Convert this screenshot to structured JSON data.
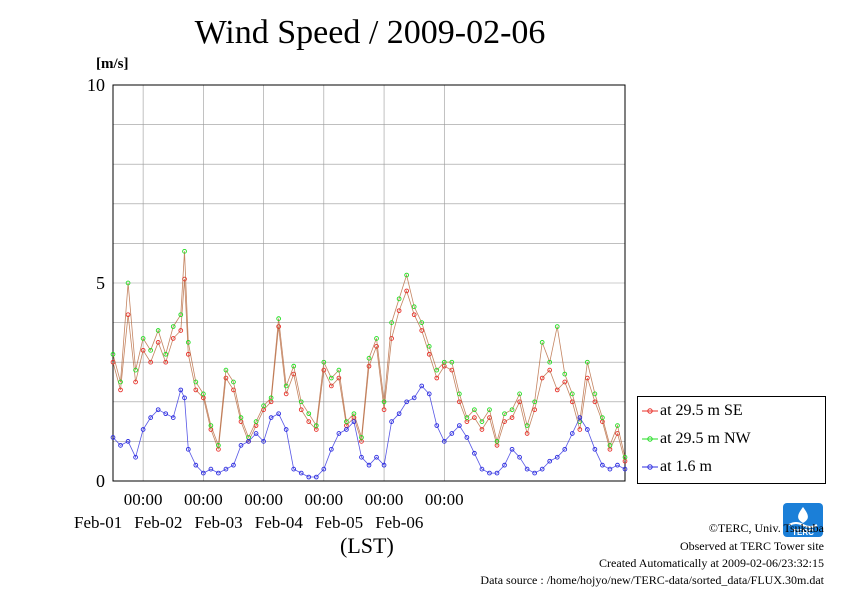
{
  "title": "Wind Speed / 2009-02-06",
  "unit": "[m/s]",
  "x_axis_label": "(LST)",
  "credits": {
    "copyright": "©TERC, Univ. Tsukuba",
    "observed": "Observed at TERC Tower site",
    "created": "Created Automatically at 2009-02-06/23:32:15",
    "source": "Data source : /home/hojyo/new/TERC-data/sorted_data/FLUX.30m.dat"
  },
  "logo_text": "TERC",
  "colors": {
    "se": "#e8302a",
    "nw": "#22dd22",
    "low": "#2d2de0",
    "line": "#b5653a",
    "grid": "#999999"
  },
  "chart_data": {
    "type": "line",
    "title": "Wind Speed / 2009-02-06",
    "ylabel": "[m/s]",
    "xlabel": "(LST)",
    "ylim": [
      0,
      10
    ],
    "yticks": [
      0,
      5,
      10
    ],
    "xlim": [
      "2009-01-31 12:00",
      "2009-02-06 24:00"
    ],
    "xticks": [
      {
        "time": "00:00",
        "date": "Feb-01"
      },
      {
        "time": "00:00",
        "date": "Feb-02"
      },
      {
        "time": "00:00",
        "date": "Feb-03"
      },
      {
        "time": "00:00",
        "date": "Feb-04"
      },
      {
        "time": "00:00",
        "date": "Feb-05"
      },
      {
        "time": "00:00",
        "date": "Feb-06"
      }
    ],
    "grid": true,
    "legend_position": "right",
    "x_hours_from": "2009-01-31 12:00",
    "series": [
      {
        "name": "at 29.5 m SE",
        "color": "#e8302a",
        "points": [
          [
            0,
            3.0
          ],
          [
            3,
            2.3
          ],
          [
            6,
            4.2
          ],
          [
            9,
            2.5
          ],
          [
            12,
            3.3
          ],
          [
            15,
            3.0
          ],
          [
            18,
            3.5
          ],
          [
            21,
            3.0
          ],
          [
            24,
            3.6
          ],
          [
            27,
            3.8
          ],
          [
            28.5,
            5.1
          ],
          [
            30,
            3.2
          ],
          [
            33,
            2.3
          ],
          [
            36,
            2.1
          ],
          [
            39,
            1.3
          ],
          [
            42,
            0.8
          ],
          [
            45,
            2.6
          ],
          [
            48,
            2.3
          ],
          [
            51,
            1.5
          ],
          [
            54,
            1.0
          ],
          [
            57,
            1.4
          ],
          [
            60,
            1.8
          ],
          [
            63,
            2.0
          ],
          [
            66,
            3.9
          ],
          [
            69,
            2.2
          ],
          [
            72,
            2.7
          ],
          [
            75,
            1.8
          ],
          [
            78,
            1.5
          ],
          [
            81,
            1.3
          ],
          [
            84,
            2.8
          ],
          [
            87,
            2.4
          ],
          [
            90,
            2.6
          ],
          [
            93,
            1.4
          ],
          [
            96,
            1.6
          ],
          [
            99,
            1.0
          ],
          [
            102,
            2.9
          ],
          [
            105,
            3.4
          ],
          [
            108,
            1.8
          ],
          [
            111,
            3.6
          ],
          [
            114,
            4.3
          ],
          [
            117,
            4.8
          ],
          [
            120,
            4.2
          ],
          [
            123,
            3.8
          ],
          [
            126,
            3.2
          ],
          [
            129,
            2.6
          ],
          [
            132,
            2.9
          ],
          [
            135,
            2.8
          ],
          [
            138,
            2.0
          ],
          [
            141,
            1.5
          ],
          [
            144,
            1.6
          ],
          [
            147,
            1.3
          ],
          [
            150,
            1.6
          ],
          [
            153,
            0.9
          ],
          [
            156,
            1.5
          ],
          [
            159,
            1.6
          ],
          [
            162,
            2.0
          ],
          [
            165,
            1.2
          ],
          [
            168,
            1.8
          ],
          [
            171,
            2.6
          ],
          [
            174,
            2.8
          ],
          [
            177,
            2.3
          ],
          [
            180,
            2.5
          ],
          [
            183,
            2.0
          ],
          [
            186,
            1.3
          ],
          [
            189,
            2.6
          ],
          [
            192,
            2.0
          ],
          [
            195,
            1.5
          ],
          [
            198,
            0.8
          ],
          [
            201,
            1.2
          ],
          [
            204,
            0.5
          ]
        ]
      },
      {
        "name": "at 29.5 m NW",
        "color": "#22dd22",
        "points": [
          [
            0,
            3.2
          ],
          [
            3,
            2.5
          ],
          [
            6,
            5.0
          ],
          [
            9,
            2.8
          ],
          [
            12,
            3.6
          ],
          [
            15,
            3.3
          ],
          [
            18,
            3.8
          ],
          [
            21,
            3.2
          ],
          [
            24,
            3.9
          ],
          [
            27,
            4.2
          ],
          [
            28.5,
            5.8
          ],
          [
            30,
            3.5
          ],
          [
            33,
            2.5
          ],
          [
            36,
            2.2
          ],
          [
            39,
            1.4
          ],
          [
            42,
            0.9
          ],
          [
            45,
            2.8
          ],
          [
            48,
            2.5
          ],
          [
            51,
            1.6
          ],
          [
            54,
            1.1
          ],
          [
            57,
            1.5
          ],
          [
            60,
            1.9
          ],
          [
            63,
            2.1
          ],
          [
            66,
            4.1
          ],
          [
            69,
            2.4
          ],
          [
            72,
            2.9
          ],
          [
            75,
            2.0
          ],
          [
            78,
            1.7
          ],
          [
            81,
            1.4
          ],
          [
            84,
            3.0
          ],
          [
            87,
            2.6
          ],
          [
            90,
            2.8
          ],
          [
            93,
            1.5
          ],
          [
            96,
            1.7
          ],
          [
            99,
            1.1
          ],
          [
            102,
            3.1
          ],
          [
            105,
            3.6
          ],
          [
            108,
            2.0
          ],
          [
            111,
            4.0
          ],
          [
            114,
            4.6
          ],
          [
            117,
            5.2
          ],
          [
            120,
            4.4
          ],
          [
            123,
            4.0
          ],
          [
            126,
            3.4
          ],
          [
            129,
            2.8
          ],
          [
            132,
            3.0
          ],
          [
            135,
            3.0
          ],
          [
            138,
            2.2
          ],
          [
            141,
            1.6
          ],
          [
            144,
            1.8
          ],
          [
            147,
            1.5
          ],
          [
            150,
            1.8
          ],
          [
            153,
            1.0
          ],
          [
            156,
            1.7
          ],
          [
            159,
            1.8
          ],
          [
            162,
            2.2
          ],
          [
            165,
            1.4
          ],
          [
            168,
            2.0
          ],
          [
            171,
            3.5
          ],
          [
            174,
            3.0
          ],
          [
            177,
            3.9
          ],
          [
            180,
            2.7
          ],
          [
            183,
            2.2
          ],
          [
            186,
            1.5
          ],
          [
            189,
            3.0
          ],
          [
            192,
            2.2
          ],
          [
            195,
            1.6
          ],
          [
            198,
            0.9
          ],
          [
            201,
            1.4
          ],
          [
            204,
            0.6
          ]
        ]
      },
      {
        "name": "at 1.6 m",
        "color": "#2d2de0",
        "points": [
          [
            0,
            1.1
          ],
          [
            3,
            0.9
          ],
          [
            6,
            1.0
          ],
          [
            9,
            0.6
          ],
          [
            12,
            1.3
          ],
          [
            15,
            1.6
          ],
          [
            18,
            1.8
          ],
          [
            21,
            1.7
          ],
          [
            24,
            1.6
          ],
          [
            27,
            2.3
          ],
          [
            28.5,
            2.1
          ],
          [
            30,
            0.8
          ],
          [
            33,
            0.4
          ],
          [
            36,
            0.2
          ],
          [
            39,
            0.3
          ],
          [
            42,
            0.2
          ],
          [
            45,
            0.3
          ],
          [
            48,
            0.4
          ],
          [
            51,
            0.9
          ],
          [
            54,
            1.0
          ],
          [
            57,
            1.2
          ],
          [
            60,
            1.0
          ],
          [
            63,
            1.6
          ],
          [
            66,
            1.7
          ],
          [
            69,
            1.3
          ],
          [
            72,
            0.3
          ],
          [
            75,
            0.2
          ],
          [
            78,
            0.1
          ],
          [
            81,
            0.1
          ],
          [
            84,
            0.3
          ],
          [
            87,
            0.8
          ],
          [
            90,
            1.2
          ],
          [
            93,
            1.3
          ],
          [
            96,
            1.5
          ],
          [
            99,
            0.6
          ],
          [
            102,
            0.4
          ],
          [
            105,
            0.6
          ],
          [
            108,
            0.4
          ],
          [
            111,
            1.5
          ],
          [
            114,
            1.7
          ],
          [
            117,
            2.0
          ],
          [
            120,
            2.1
          ],
          [
            123,
            2.4
          ],
          [
            126,
            2.2
          ],
          [
            129,
            1.4
          ],
          [
            132,
            1.0
          ],
          [
            135,
            1.2
          ],
          [
            138,
            1.4
          ],
          [
            141,
            1.1
          ],
          [
            144,
            0.7
          ],
          [
            147,
            0.3
          ],
          [
            150,
            0.2
          ],
          [
            153,
            0.2
          ],
          [
            156,
            0.4
          ],
          [
            159,
            0.8
          ],
          [
            162,
            0.6
          ],
          [
            165,
            0.3
          ],
          [
            168,
            0.2
          ],
          [
            171,
            0.3
          ],
          [
            174,
            0.5
          ],
          [
            177,
            0.6
          ],
          [
            180,
            0.8
          ],
          [
            183,
            1.2
          ],
          [
            186,
            1.6
          ],
          [
            189,
            1.3
          ],
          [
            192,
            0.8
          ],
          [
            195,
            0.4
          ],
          [
            198,
            0.3
          ],
          [
            201,
            0.4
          ],
          [
            204,
            0.3
          ]
        ]
      }
    ]
  }
}
